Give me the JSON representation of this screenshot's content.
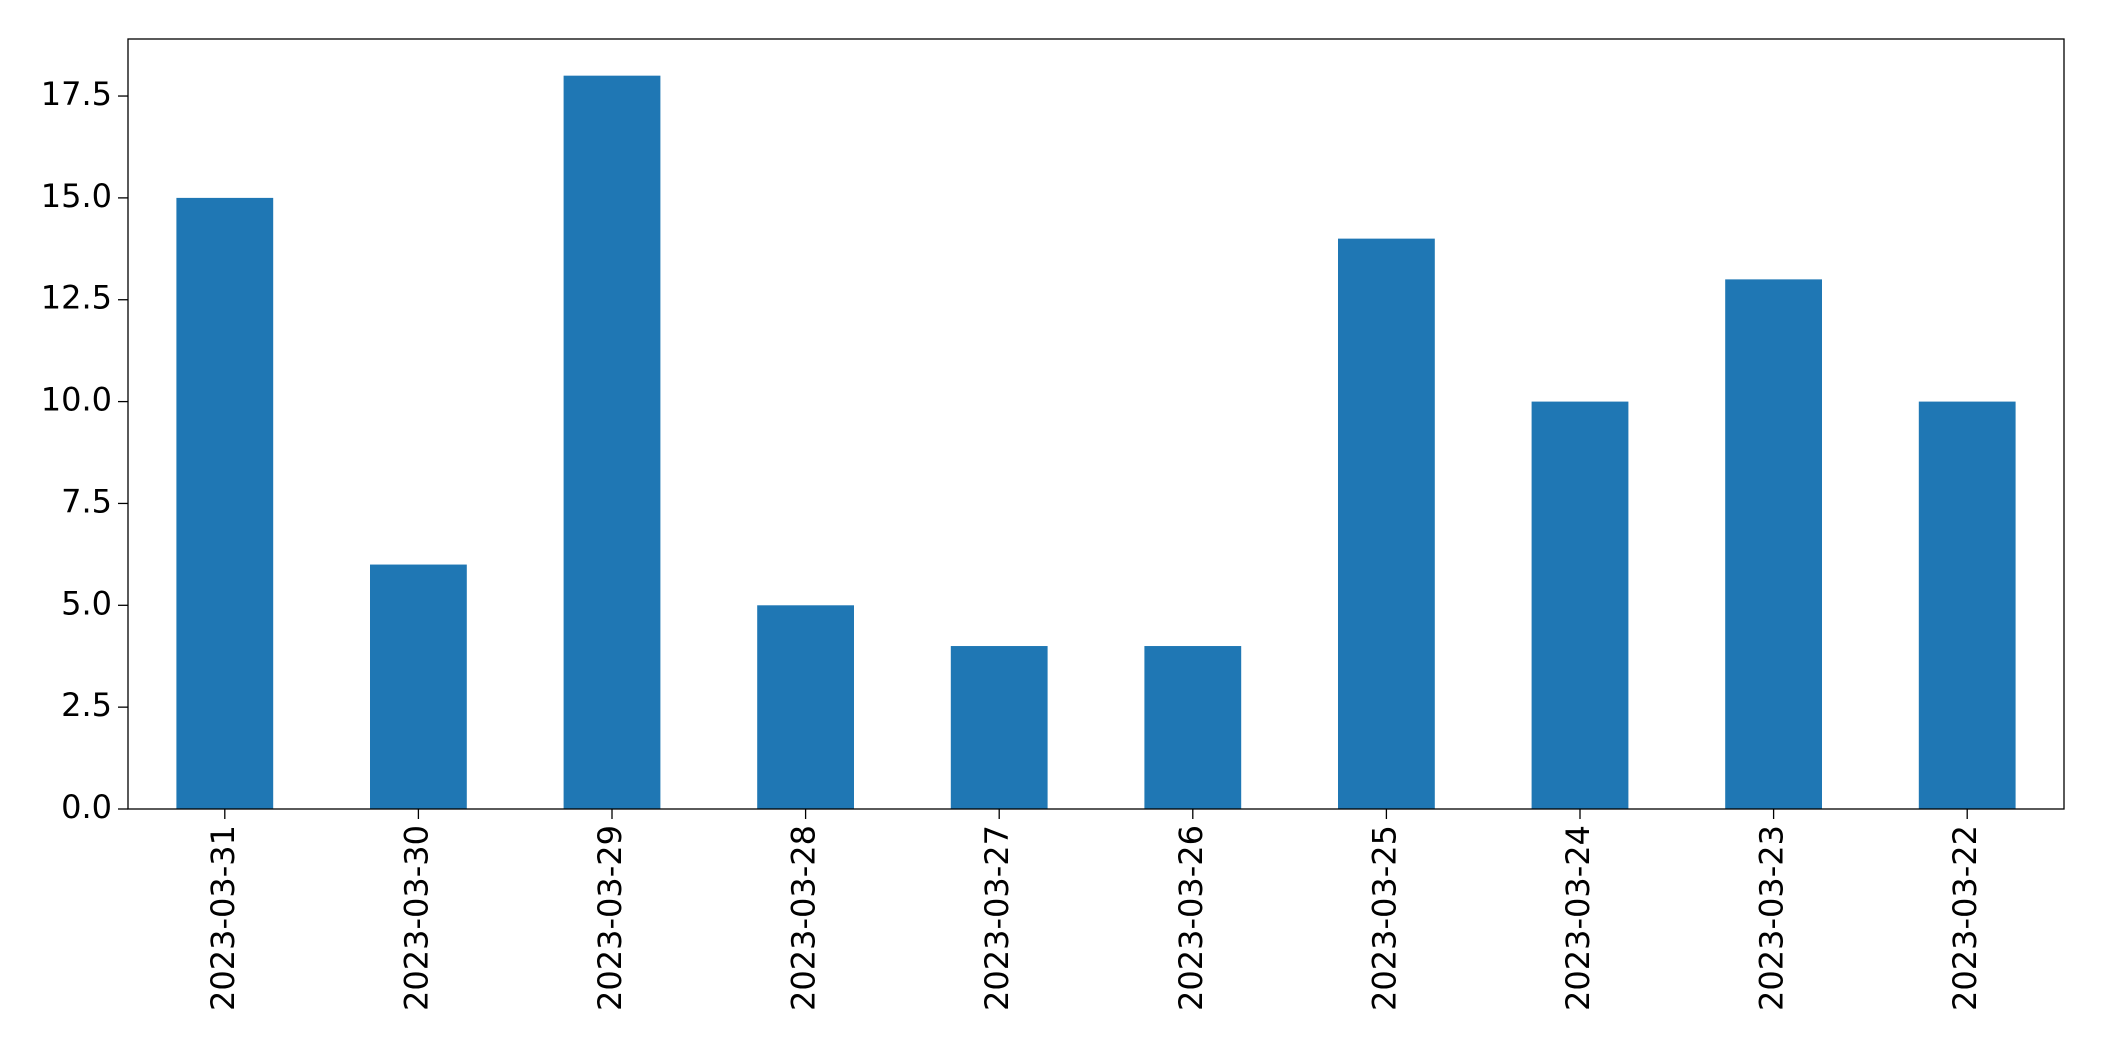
{
  "chart_data": {
    "type": "bar",
    "categories": [
      "2023-03-31",
      "2023-03-30",
      "2023-03-29",
      "2023-03-28",
      "2023-03-27",
      "2023-03-26",
      "2023-03-25",
      "2023-03-24",
      "2023-03-23",
      "2023-03-22"
    ],
    "values": [
      15,
      6,
      18,
      5,
      4,
      4,
      14,
      10,
      13,
      10
    ],
    "color": "#1f77b4",
    "ylim": [
      0,
      18.9
    ],
    "yticks": [
      {
        "value": 0,
        "label": "0.0"
      },
      2.5,
      {
        "value": 5,
        "label": "5.0"
      },
      7.5,
      {
        "value": 10,
        "label": "10.0"
      },
      12.5,
      {
        "value": 15,
        "label": "15.0"
      },
      17.5
    ],
    "grid": false
  }
}
